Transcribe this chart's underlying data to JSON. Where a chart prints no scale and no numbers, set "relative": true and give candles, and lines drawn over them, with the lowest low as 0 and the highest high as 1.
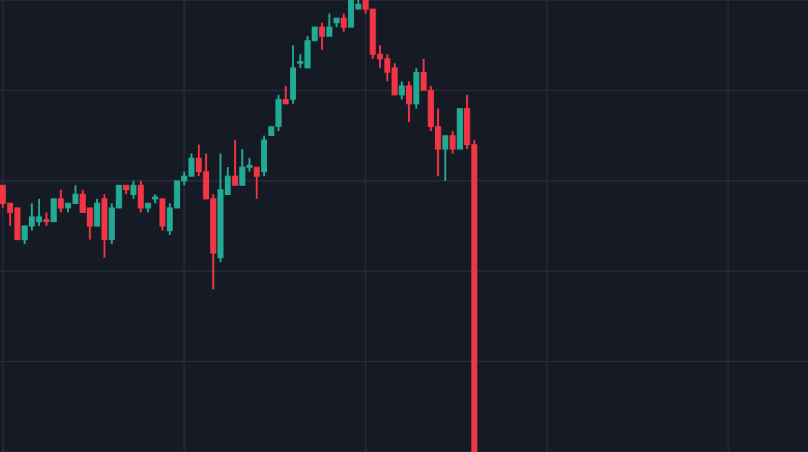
{
  "chart_data": {
    "type": "candlestick",
    "relative": true,
    "grid": true,
    "categories": [
      null,
      null,
      null,
      null,
      null,
      null,
      null,
      null,
      null,
      null,
      null,
      null,
      null,
      null,
      null,
      null,
      null,
      null,
      null,
      null,
      null,
      null,
      null,
      null,
      null,
      null,
      null,
      null,
      null,
      null,
      null,
      null,
      null,
      null,
      null,
      null,
      null,
      null,
      null,
      null,
      null,
      null,
      null,
      null,
      null,
      null,
      null,
      null,
      null,
      null,
      null,
      null,
      null,
      null,
      null,
      null,
      null,
      null,
      null,
      null,
      null,
      null,
      null,
      null,
      null,
      null
    ],
    "colors": [
      "#f23645",
      "#f23645",
      "#f23645",
      "#22ab94",
      "#22ab94",
      "#22ab94",
      "#f23645",
      "#22ab94",
      "#f23645",
      "#22ab94",
      "#22ab94",
      "#f23645",
      "#f23645",
      "#22ab94",
      "#f23645",
      "#22ab94",
      "#22ab94",
      "#f23645",
      "#22ab94",
      "#f23645",
      "#22ab94",
      "#22ab94",
      "#f23645",
      "#22ab94",
      "#22ab94",
      "#22ab94",
      "#22ab94",
      "#f23645",
      "#f23645",
      "#f23645",
      "#22ab94",
      "#22ab94",
      "#f23645",
      "#22ab94",
      "#22ab94",
      "#f23645",
      "#22ab94",
      "#22ab94",
      "#22ab94",
      "#f23645",
      "#22ab94",
      "#22ab94",
      "#22ab94",
      "#22ab94",
      "#f23645",
      "#22ab94",
      "#22ab94",
      "#f23645",
      "#22ab94",
      "#22ab94",
      "#f23645",
      "#f23645",
      "#f23645",
      "#f23645",
      "#f23645",
      "#22ab94",
      "#f23645",
      "#22ab94",
      "#f23645",
      "#f23645",
      "#f23645",
      "#22ab94",
      "#f23645",
      "#22ab94",
      "#f23645",
      "#f23645"
    ],
    "ohlc": [
      [
        0.59,
        0.59,
        0.54,
        0.55
      ],
      [
        0.55,
        0.55,
        0.5,
        0.53
      ],
      [
        0.54,
        0.54,
        0.47,
        0.47
      ],
      [
        0.47,
        0.5,
        0.46,
        0.5
      ],
      [
        0.5,
        0.55,
        0.49,
        0.52
      ],
      [
        0.51,
        0.56,
        0.5,
        0.52
      ],
      [
        0.51,
        0.53,
        0.5,
        0.51
      ],
      [
        0.51,
        0.56,
        0.51,
        0.56
      ],
      [
        0.56,
        0.58,
        0.53,
        0.54
      ],
      [
        0.54,
        0.55,
        0.53,
        0.55
      ],
      [
        0.55,
        0.59,
        0.55,
        0.57
      ],
      [
        0.57,
        0.58,
        0.53,
        0.53
      ],
      [
        0.54,
        0.54,
        0.47,
        0.5
      ],
      [
        0.5,
        0.56,
        0.5,
        0.55
      ],
      [
        0.56,
        0.57,
        0.43,
        0.47
      ],
      [
        0.47,
        0.55,
        0.46,
        0.54
      ],
      [
        0.54,
        0.59,
        0.54,
        0.59
      ],
      [
        0.59,
        0.59,
        0.57,
        0.58
      ],
      [
        0.57,
        0.6,
        0.56,
        0.59
      ],
      [
        0.59,
        0.6,
        0.53,
        0.54
      ],
      [
        0.54,
        0.55,
        0.53,
        0.55
      ],
      [
        0.56,
        0.57,
        0.55,
        0.56
      ],
      [
        0.56,
        0.56,
        0.49,
        0.5
      ],
      [
        0.49,
        0.55,
        0.48,
        0.54
      ],
      [
        0.54,
        0.6,
        0.54,
        0.6
      ],
      [
        0.6,
        0.62,
        0.59,
        0.61
      ],
      [
        0.61,
        0.66,
        0.61,
        0.65
      ],
      [
        0.65,
        0.68,
        0.61,
        0.62
      ],
      [
        0.62,
        0.66,
        0.56,
        0.56
      ],
      [
        0.56,
        0.57,
        0.36,
        0.44
      ],
      [
        0.43,
        0.66,
        0.42,
        0.58
      ],
      [
        0.57,
        0.63,
        0.57,
        0.61
      ],
      [
        0.61,
        0.69,
        0.59,
        0.59
      ],
      [
        0.59,
        0.67,
        0.59,
        0.63
      ],
      [
        0.63,
        0.65,
        0.62,
        0.63
      ],
      [
        0.63,
        0.63,
        0.56,
        0.61
      ],
      [
        0.62,
        0.7,
        0.61,
        0.69
      ],
      [
        0.7,
        0.72,
        0.7,
        0.72
      ],
      [
        0.72,
        0.79,
        0.71,
        0.78
      ],
      [
        0.78,
        0.81,
        0.77,
        0.77
      ],
      [
        0.78,
        0.9,
        0.77,
        0.85
      ],
      [
        0.86,
        0.88,
        0.85,
        0.86
      ],
      [
        0.85,
        0.92,
        0.85,
        0.91
      ],
      [
        0.91,
        0.94,
        0.91,
        0.94
      ],
      [
        0.94,
        0.95,
        0.89,
        0.92
      ],
      [
        0.92,
        0.97,
        0.92,
        0.94
      ],
      [
        0.95,
        0.96,
        0.94,
        0.96
      ],
      [
        0.96,
        0.97,
        0.93,
        0.94
      ],
      [
        0.94,
        1.0,
        0.94,
        1.0
      ],
      [
        0.98,
        1.0,
        0.98,
        0.99
      ],
      [
        1.0,
        1.0,
        0.97,
        0.98
      ],
      [
        0.98,
        0.98,
        0.87,
        0.88
      ],
      [
        0.88,
        0.9,
        0.85,
        0.87
      ],
      [
        0.87,
        0.88,
        0.82,
        0.84
      ],
      [
        0.85,
        0.86,
        0.79,
        0.79
      ],
      [
        0.79,
        0.82,
        0.78,
        0.81
      ],
      [
        0.81,
        0.82,
        0.73,
        0.77
      ],
      [
        0.77,
        0.85,
        0.76,
        0.84
      ],
      [
        0.84,
        0.87,
        0.8,
        0.8
      ],
      [
        0.8,
        0.81,
        0.71,
        0.72
      ],
      [
        0.72,
        0.76,
        0.61,
        0.67
      ],
      [
        0.67,
        0.7,
        0.6,
        0.7
      ],
      [
        0.7,
        0.71,
        0.66,
        0.67
      ],
      [
        0.67,
        0.76,
        0.67,
        0.76
      ],
      [
        0.76,
        0.79,
        0.67,
        0.68
      ],
      [
        0.68,
        0.69,
        0.0,
        0.0
      ]
    ]
  }
}
